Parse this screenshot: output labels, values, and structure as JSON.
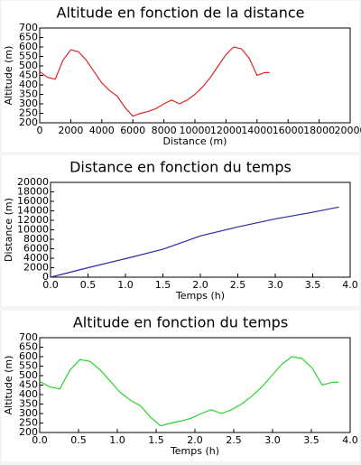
{
  "chart_data": [
    {
      "type": "line",
      "title": "Altitude en fonction de la distance",
      "x_label": "Distance (m)",
      "y_label": "Altitude (m)",
      "x": [
        0,
        500,
        1000,
        1500,
        2000,
        2500,
        3000,
        3500,
        4000,
        4500,
        5000,
        5500,
        6000,
        6500,
        7000,
        7500,
        8000,
        8500,
        9000,
        9500,
        10000,
        10500,
        11000,
        11500,
        12000,
        12500,
        13000,
        13500,
        14000,
        14500,
        14800
      ],
      "values": [
        470,
        440,
        430,
        530,
        585,
        575,
        530,
        470,
        410,
        370,
        340,
        280,
        235,
        250,
        260,
        275,
        300,
        320,
        300,
        320,
        350,
        390,
        440,
        500,
        560,
        600,
        590,
        540,
        450,
        465,
        465
      ],
      "color": "#e02424",
      "xlim": [
        0,
        20000
      ],
      "xticks": [
        0,
        2000,
        4000,
        6000,
        8000,
        10000,
        12000,
        14000,
        16000,
        18000,
        20000
      ],
      "ylim": [
        200,
        700
      ],
      "yticks": [
        200,
        250,
        300,
        350,
        400,
        450,
        500,
        550,
        600,
        650,
        700
      ]
    },
    {
      "type": "line",
      "title": "Distance en fonction du temps",
      "x_label": "Temps (h)",
      "y_label": "Distance (m)",
      "x": [
        0,
        0.5,
        1,
        1.5,
        2,
        2.5,
        3,
        3.5,
        3.85
      ],
      "values": [
        0,
        2000,
        3900,
        5900,
        8700,
        10600,
        12300,
        13700,
        14800
      ],
      "color": "#2a2aa8",
      "xlim": [
        0,
        4
      ],
      "xticks": [
        {
          "value": 0,
          "label": "0.0"
        },
        0.5,
        {
          "value": 1,
          "label": "1.0"
        },
        1.5,
        {
          "value": 2,
          "label": "2.0"
        },
        2.5,
        {
          "value": 3,
          "label": "3.0"
        },
        3.5,
        {
          "value": 4,
          "label": "4.0"
        }
      ],
      "ylim": [
        0,
        20000
      ],
      "yticks": [
        0,
        2000,
        4000,
        6000,
        8000,
        10000,
        12000,
        14000,
        16000,
        18000,
        20000
      ]
    },
    {
      "type": "line",
      "title": "Altitude en fonction du temps",
      "x_label": "Temps (h)",
      "y_label": "Altitude (m)",
      "x": [
        0,
        0.13,
        0.26,
        0.39,
        0.52,
        0.65,
        0.78,
        0.91,
        1.04,
        1.17,
        1.3,
        1.43,
        1.56,
        1.69,
        1.82,
        1.95,
        2.08,
        2.21,
        2.34,
        2.47,
        2.6,
        2.73,
        2.86,
        2.99,
        3.12,
        3.25,
        3.38,
        3.51,
        3.64,
        3.77,
        3.85
      ],
      "values": [
        470,
        440,
        430,
        530,
        585,
        575,
        530,
        470,
        410,
        370,
        340,
        280,
        235,
        250,
        260,
        275,
        300,
        320,
        300,
        320,
        350,
        390,
        440,
        500,
        560,
        600,
        590,
        540,
        450,
        465,
        465
      ],
      "color": "#2ad42a",
      "xlim": [
        0,
        4
      ],
      "xticks": [
        {
          "value": 0,
          "label": "0.0"
        },
        0.5,
        {
          "value": 1,
          "label": "1.0"
        },
        1.5,
        {
          "value": 2,
          "label": "2.0"
        },
        2.5,
        {
          "value": 3,
          "label": "3.0"
        },
        3.5,
        {
          "value": 4,
          "label": "4.0"
        }
      ],
      "ylim": [
        200,
        700
      ],
      "yticks": [
        200,
        250,
        300,
        350,
        400,
        450,
        500,
        550,
        600,
        650,
        700
      ]
    }
  ]
}
